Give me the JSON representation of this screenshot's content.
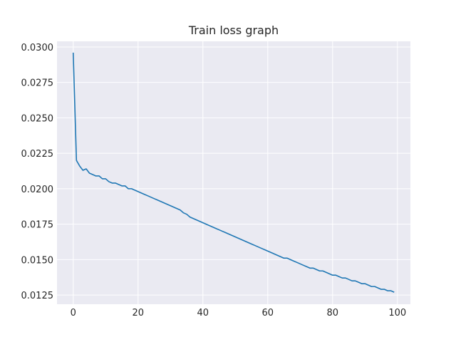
{
  "chart_data": {
    "type": "line",
    "title": "Train loss graph",
    "xlabel": "",
    "ylabel": "",
    "xlim": [
      -5,
      104
    ],
    "ylim": [
      0.01185,
      0.0304
    ],
    "xticks": [
      0,
      20,
      40,
      60,
      80,
      100
    ],
    "xtick_labels": [
      "0",
      "20",
      "40",
      "60",
      "80",
      "100"
    ],
    "yticks": [
      0.0125,
      0.015,
      0.0175,
      0.02,
      0.0225,
      0.025,
      0.0275,
      0.03
    ],
    "ytick_labels": [
      "0.0125",
      "0.0150",
      "0.0175",
      "0.0200",
      "0.0225",
      "0.0250",
      "0.0275",
      "0.0300"
    ],
    "grid": true,
    "background": "#EAEAF2",
    "series": [
      {
        "color": "#1F77B4",
        "x": [
          0,
          1,
          2,
          3,
          4,
          5,
          6,
          7,
          8,
          9,
          10,
          11,
          12,
          13,
          14,
          15,
          16,
          17,
          18,
          19,
          20,
          21,
          22,
          23,
          24,
          25,
          26,
          27,
          28,
          29,
          30,
          31,
          32,
          33,
          34,
          35,
          36,
          37,
          38,
          39,
          40,
          41,
          42,
          43,
          44,
          45,
          46,
          47,
          48,
          49,
          50,
          51,
          52,
          53,
          54,
          55,
          56,
          57,
          58,
          59,
          60,
          61,
          62,
          63,
          64,
          65,
          66,
          67,
          68,
          69,
          70,
          71,
          72,
          73,
          74,
          75,
          76,
          77,
          78,
          79,
          80,
          81,
          82,
          83,
          84,
          85,
          86,
          87,
          88,
          89,
          90,
          91,
          92,
          93,
          94,
          95,
          96,
          97,
          98,
          99
        ],
        "values": [
          0.0296,
          0.022,
          0.0216,
          0.0213,
          0.0214,
          0.0211,
          0.021,
          0.0209,
          0.0209,
          0.0207,
          0.0207,
          0.0205,
          0.0204,
          0.0204,
          0.0203,
          0.0202,
          0.0202,
          0.02,
          0.02,
          0.0199,
          0.0198,
          0.0197,
          0.0196,
          0.0195,
          0.0194,
          0.0193,
          0.0192,
          0.0191,
          0.019,
          0.0189,
          0.0188,
          0.0187,
          0.0186,
          0.0185,
          0.0183,
          0.0182,
          0.018,
          0.0179,
          0.0178,
          0.0177,
          0.0176,
          0.0175,
          0.0174,
          0.0173,
          0.0172,
          0.0171,
          0.017,
          0.0169,
          0.0168,
          0.0167,
          0.0166,
          0.0165,
          0.0164,
          0.0163,
          0.0162,
          0.0161,
          0.016,
          0.0159,
          0.0158,
          0.0157,
          0.0156,
          0.0155,
          0.0154,
          0.0153,
          0.0152,
          0.0151,
          0.0151,
          0.015,
          0.0149,
          0.0148,
          0.0147,
          0.0146,
          0.0145,
          0.0144,
          0.0144,
          0.0143,
          0.0142,
          0.0142,
          0.0141,
          0.014,
          0.0139,
          0.0139,
          0.0138,
          0.0137,
          0.0137,
          0.0136,
          0.0135,
          0.0135,
          0.0134,
          0.0133,
          0.0133,
          0.0132,
          0.0131,
          0.0131,
          0.013,
          0.0129,
          0.0129,
          0.0128,
          0.0128,
          0.0127
        ]
      }
    ]
  }
}
